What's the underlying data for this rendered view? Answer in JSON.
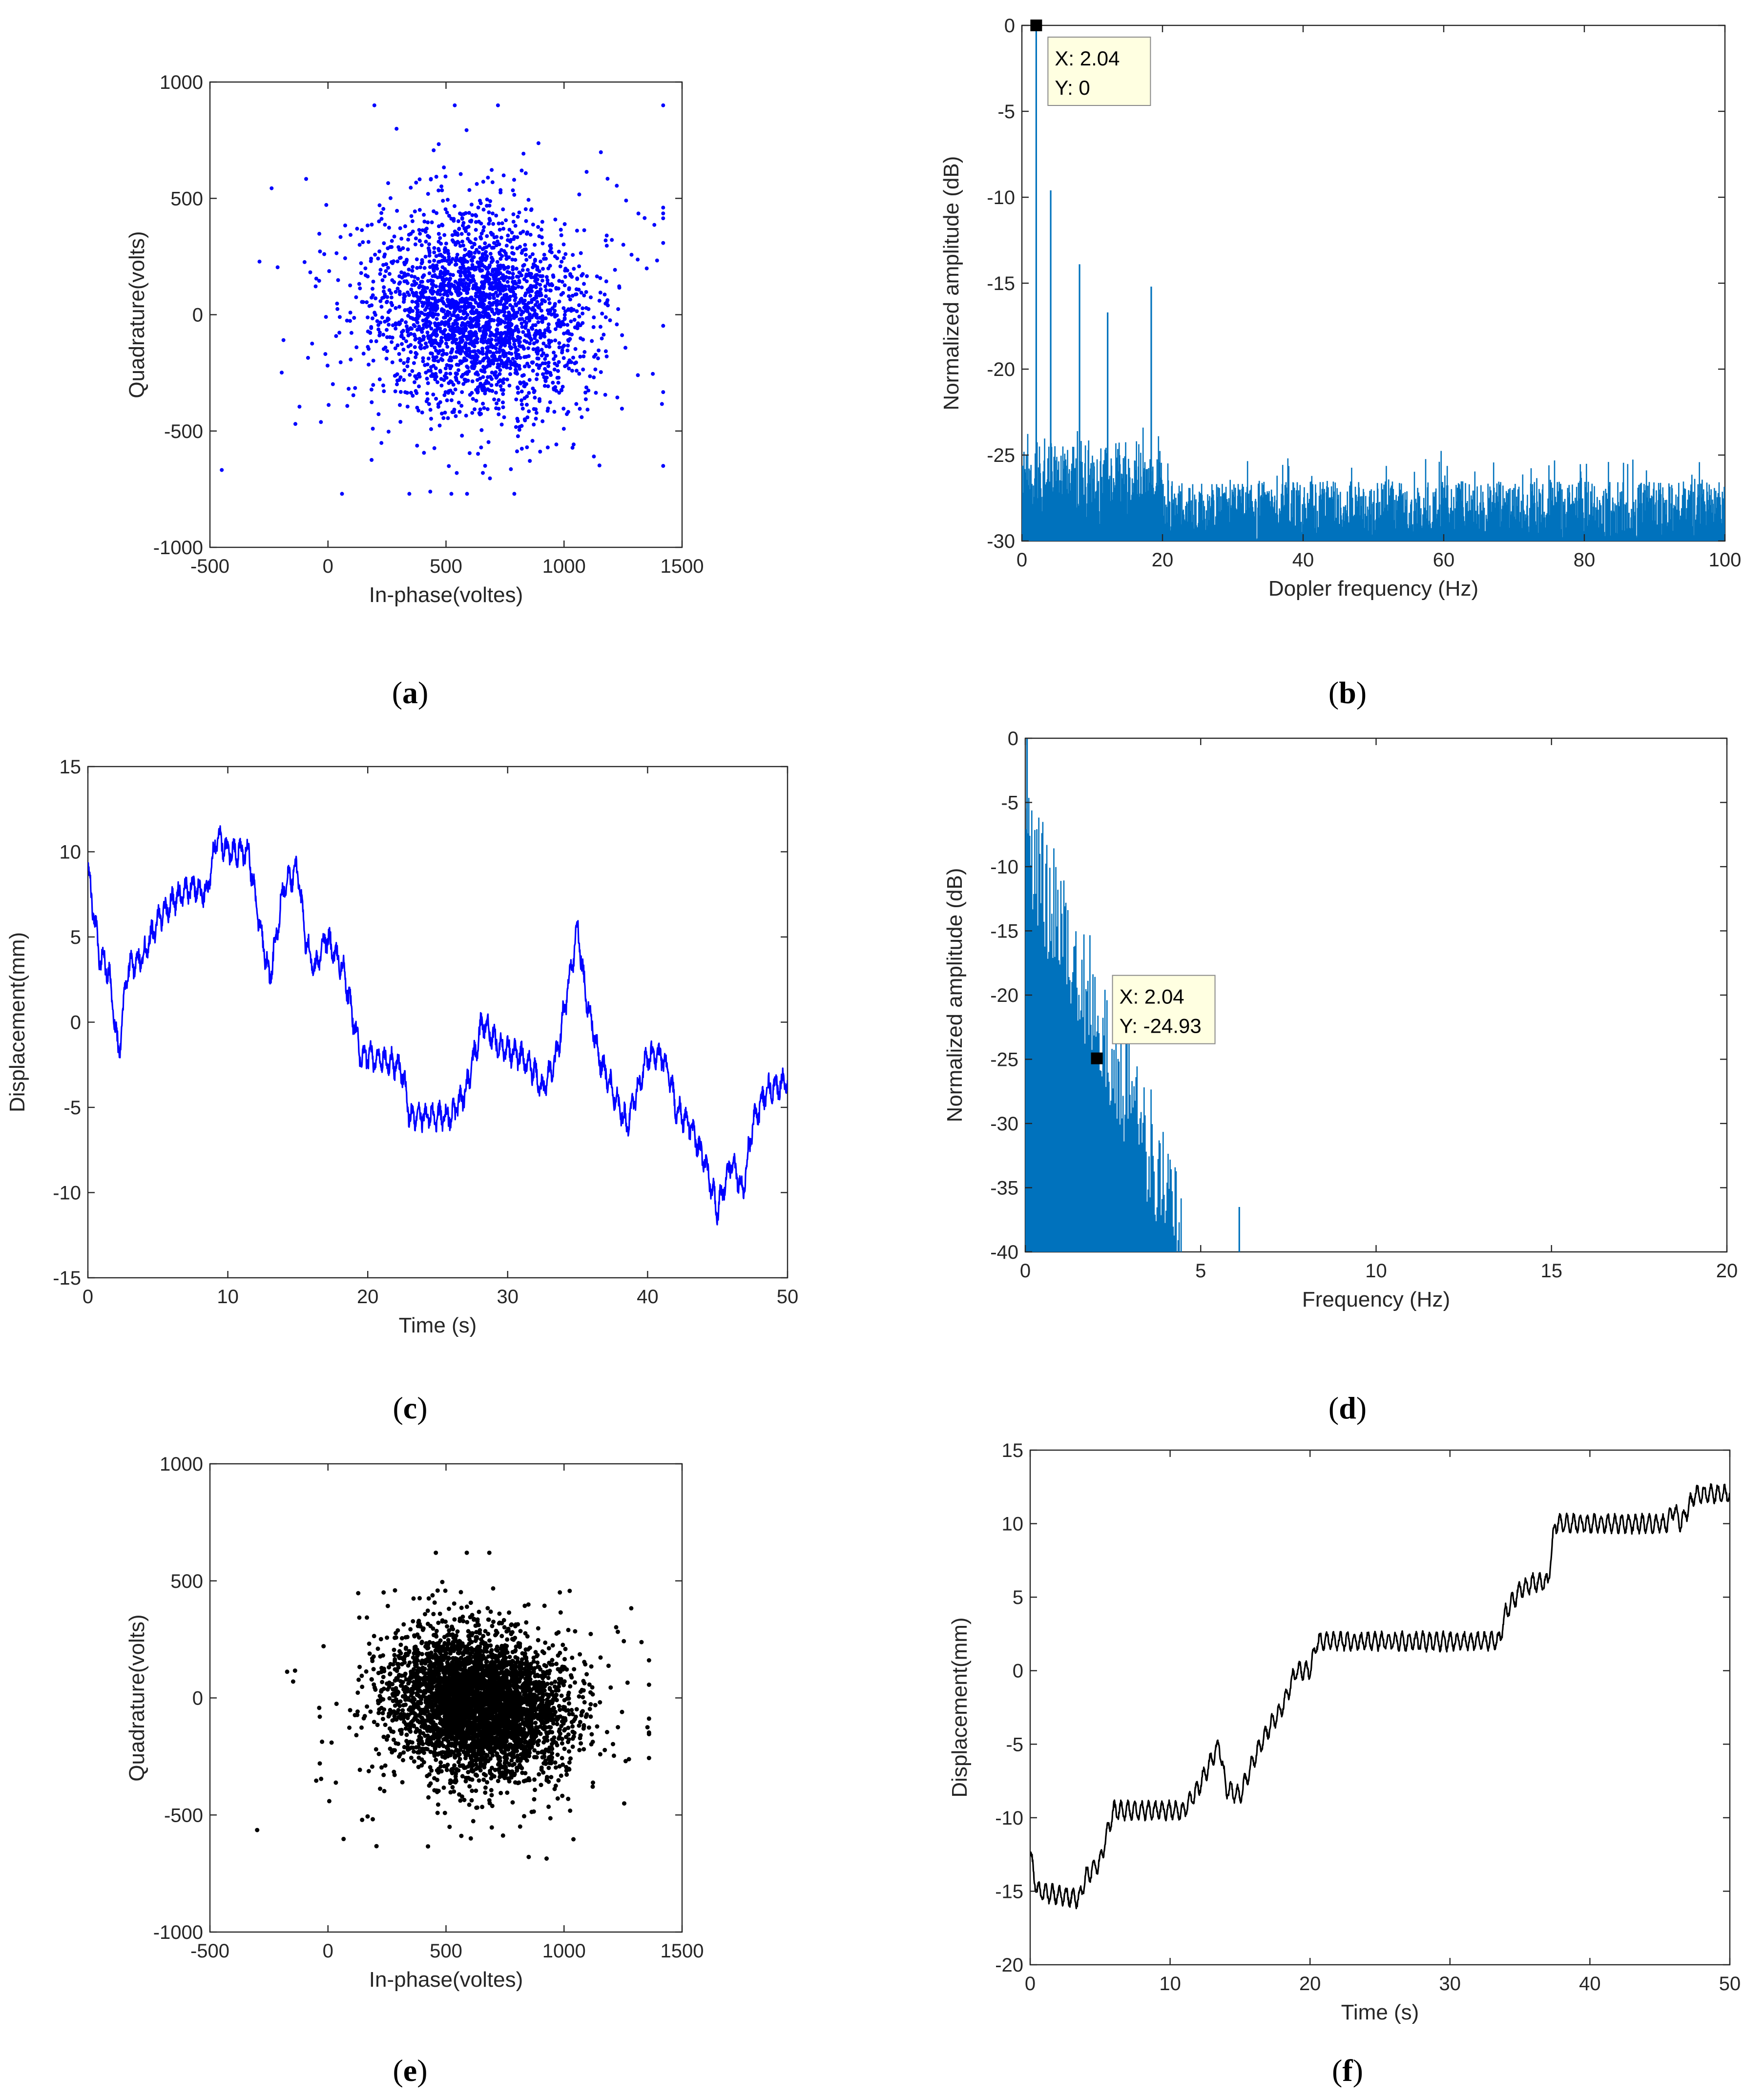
{
  "figure": {
    "colors": {
      "blue_dots": "#0000ff",
      "blue_line": "#0000ff",
      "spectrum": "#0072bd",
      "black": "#000000",
      "axis": "#262626",
      "datatip_bg": "#ffffe1"
    }
  },
  "chart_data": [
    {
      "id": "a",
      "type": "scatter",
      "caption": "a",
      "xlabel": "In-phase(voltes)",
      "ylabel": "Quadrature(volts)",
      "xlim": [
        -500,
        1500
      ],
      "ylim": [
        -1000,
        1000
      ],
      "xticks": [
        "-500",
        "0",
        "500",
        "1000",
        "1500"
      ],
      "yticks": [
        "-1000",
        "-500",
        "0",
        "500",
        "1000"
      ],
      "color": "#0000ff",
      "cloud": {
        "center": [
          640,
          10
        ],
        "spread": [
          230,
          210
        ],
        "count": 2600,
        "extent_x": [
          -450,
          1420
        ],
        "extent_y": [
          -770,
          900
        ]
      }
    },
    {
      "id": "b",
      "type": "line",
      "caption": "b",
      "xlabel": "Dopler frequency (Hz)",
      "ylabel": "Normalized amplitude (dB)",
      "xlim": [
        0,
        100
      ],
      "ylim": [
        -30,
        0
      ],
      "xticks": [
        "0",
        "20",
        "40",
        "60",
        "80",
        "100"
      ],
      "yticks": [
        "-30",
        "-25",
        "-20",
        "-15",
        "-10",
        "-5",
        "0"
      ],
      "color": "#0072bd",
      "peaks": [
        {
          "x": 2.04,
          "y": 0
        },
        {
          "x": 4.1,
          "y": -9.6
        },
        {
          "x": 8.2,
          "y": -13.9
        },
        {
          "x": 12.2,
          "y": -16.7
        },
        {
          "x": 18.4,
          "y": -15.2
        }
      ],
      "noise_floor_db": [
        -30,
        -25
      ],
      "datatip": {
        "x_label": "X: 2.04",
        "y_label": "Y: 0",
        "x": 2.04,
        "y": 0
      }
    },
    {
      "id": "c",
      "type": "line",
      "caption": "c",
      "xlabel": "Time (s)",
      "ylabel": "Displacement(mm)",
      "xlim": [
        0,
        50
      ],
      "ylim": [
        -15,
        15
      ],
      "xticks": [
        "0",
        "10",
        "20",
        "30",
        "40",
        "50"
      ],
      "yticks": [
        "-15",
        "-10",
        "-5",
        "0",
        "5",
        "10",
        "15"
      ],
      "color": "#0000ff",
      "keypoints": [
        [
          0,
          9
        ],
        [
          0.8,
          4
        ],
        [
          1.5,
          3
        ],
        [
          2.2,
          -2
        ],
        [
          2.8,
          3
        ],
        [
          4,
          4
        ],
        [
          5,
          6
        ],
        [
          6,
          7
        ],
        [
          7.5,
          8
        ],
        [
          8.5,
          7.5
        ],
        [
          9.2,
          11
        ],
        [
          10,
          10
        ],
        [
          11.5,
          10
        ],
        [
          12,
          7
        ],
        [
          13,
          2.5
        ],
        [
          14,
          8
        ],
        [
          15,
          9
        ],
        [
          15.5,
          5
        ],
        [
          16.2,
          3
        ],
        [
          17,
          5
        ],
        [
          18.3,
          3
        ],
        [
          19,
          0
        ],
        [
          19.5,
          -2
        ],
        [
          20,
          -2
        ],
        [
          22,
          -2.5
        ],
        [
          22.5,
          -3
        ],
        [
          23,
          -5.5
        ],
        [
          26,
          -5.5
        ],
        [
          27,
          -4
        ],
        [
          28.2,
          0
        ],
        [
          29.5,
          -1.5
        ],
        [
          31,
          -2
        ],
        [
          32,
          -3
        ],
        [
          32.5,
          -4
        ],
        [
          33.5,
          -2
        ],
        [
          34.5,
          3
        ],
        [
          35,
          5.5
        ],
        [
          35.5,
          2
        ],
        [
          36.5,
          -2
        ],
        [
          37.5,
          -4
        ],
        [
          38.5,
          -6
        ],
        [
          39.5,
          -3.5
        ],
        [
          40,
          -2
        ],
        [
          41,
          -2
        ],
        [
          41.5,
          -3
        ],
        [
          42,
          -5
        ],
        [
          43,
          -6
        ],
        [
          44,
          -8
        ],
        [
          45,
          -11
        ],
        [
          46,
          -8
        ],
        [
          46.8,
          -10
        ],
        [
          47.5,
          -6
        ],
        [
          48.5,
          -4
        ],
        [
          50,
          -3.5
        ]
      ]
    },
    {
      "id": "d",
      "type": "line",
      "caption": "d",
      "xlabel": "Frequency (Hz)",
      "ylabel": "Normalized amplitude (dB)",
      "xlim": [
        0,
        20
      ],
      "ylim": [
        -40,
        0
      ],
      "xticks": [
        "0",
        "5",
        "10",
        "15",
        "20"
      ],
      "yticks": [
        "-40",
        "-35",
        "-30",
        "-25",
        "-20",
        "-15",
        "-10",
        "-5",
        "0"
      ],
      "color": "#0072bd",
      "peaks": [
        {
          "x": 0.05,
          "y": 0
        },
        {
          "x": 2.04,
          "y": -24.93
        },
        {
          "x": 6.1,
          "y": -36.5
        }
      ],
      "datatip": {
        "x_label": "X: 2.04",
        "y_label": "Y: -24.93",
        "x": 2.04,
        "y": -24.93
      }
    },
    {
      "id": "e",
      "type": "scatter",
      "caption": "e",
      "xlabel": "In-phase(voltes)",
      "ylabel": "Quadrature(volts)",
      "xlim": [
        -500,
        1500
      ],
      "ylim": [
        -1000,
        1000
      ],
      "xticks": [
        "-500",
        "0",
        "500",
        "1000",
        "1500"
      ],
      "yticks": [
        "-1000",
        "-500",
        "0",
        "500",
        "1000"
      ],
      "color": "#000000",
      "cloud": {
        "center": [
          640,
          -30
        ],
        "spread": [
          180,
          150
        ],
        "count": 4200,
        "extent_x": [
          -300,
          1360
        ],
        "extent_y": [
          -780,
          620
        ]
      }
    },
    {
      "id": "f",
      "type": "line",
      "caption": "f",
      "xlabel": "Time (s)",
      "ylabel": "Displacement(mm)",
      "xlim": [
        0,
        50
      ],
      "ylim": [
        -20,
        15
      ],
      "xticks": [
        "0",
        "10",
        "20",
        "30",
        "40",
        "50"
      ],
      "yticks": [
        "-20",
        "-15",
        "-10",
        "-5",
        "0",
        "5",
        "10",
        "15"
      ],
      "color": "#000000",
      "keypoints": [
        [
          0,
          -12.5
        ],
        [
          0.5,
          -15
        ],
        [
          3.5,
          -15.5
        ],
        [
          4,
          -14
        ],
        [
          5,
          -13
        ],
        [
          5.5,
          -11
        ],
        [
          6,
          -9.5
        ],
        [
          11,
          -9.5
        ],
        [
          12,
          -8
        ],
        [
          13,
          -6
        ],
        [
          13.5,
          -5
        ],
        [
          14,
          -8
        ],
        [
          15,
          -8.5
        ],
        [
          16,
          -6
        ],
        [
          17,
          -4
        ],
        [
          18,
          -2.5
        ],
        [
          19,
          0
        ],
        [
          20,
          0
        ],
        [
          20.5,
          2
        ],
        [
          33.5,
          2
        ],
        [
          34,
          4
        ],
        [
          35,
          5.5
        ],
        [
          36,
          6
        ],
        [
          37,
          6
        ],
        [
          37.5,
          10
        ],
        [
          45.5,
          10
        ],
        [
          46,
          11
        ],
        [
          46.5,
          10
        ],
        [
          47.5,
          12
        ],
        [
          50,
          12
        ]
      ]
    }
  ]
}
